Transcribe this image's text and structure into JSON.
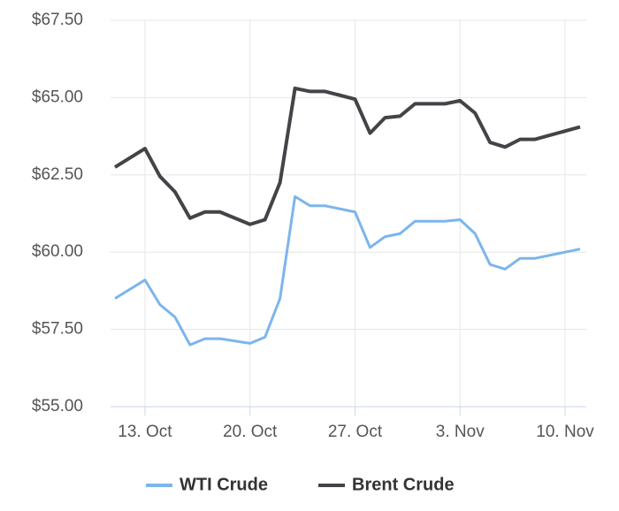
{
  "chart_data": {
    "type": "line",
    "x": [
      "10-11",
      "10-13",
      "10-14",
      "10-15",
      "10-16",
      "10-17",
      "10-18",
      "10-20",
      "10-21",
      "10-22",
      "10-23",
      "10-24",
      "10-25",
      "10-27",
      "10-28",
      "10-29",
      "10-30",
      "10-31",
      "11-02",
      "11-03",
      "11-04",
      "11-05",
      "11-06",
      "11-07",
      "11-08",
      "11-11"
    ],
    "series": [
      {
        "name": "WTI Crude",
        "color": "#7cb5ec",
        "values": [
          58.5,
          59.1,
          58.3,
          57.9,
          57.0,
          57.2,
          57.2,
          57.05,
          57.25,
          58.5,
          61.8,
          61.5,
          61.5,
          61.3,
          60.15,
          60.5,
          60.6,
          61.0,
          61.0,
          61.05,
          60.6,
          59.6,
          59.45,
          59.8,
          59.8,
          60.1
        ]
      },
      {
        "name": "Brent Crude",
        "color": "#434348",
        "values": [
          62.75,
          63.35,
          62.45,
          61.95,
          61.1,
          61.3,
          61.3,
          60.9,
          61.05,
          62.25,
          65.3,
          65.2,
          65.2,
          64.95,
          63.85,
          64.35,
          64.4,
          64.8,
          64.8,
          64.9,
          64.5,
          63.55,
          63.4,
          63.65,
          63.65,
          64.05
        ]
      }
    ],
    "xlim": [
      "10-11",
      "11-11"
    ],
    "xticks": [
      {
        "value": "10-13",
        "label": "13. Oct"
      },
      {
        "value": "10-20",
        "label": "20. Oct"
      },
      {
        "value": "10-27",
        "label": "27. Oct"
      },
      {
        "value": "11-03",
        "label": "3. Nov"
      },
      {
        "value": "11-10",
        "label": "10. Nov"
      }
    ],
    "ylim": [
      55,
      67.5
    ],
    "yticks": [
      {
        "value": 55,
        "label": "$55.00"
      },
      {
        "value": 57.5,
        "label": "$57.50"
      },
      {
        "value": 60,
        "label": "$60.00"
      },
      {
        "value": 62.5,
        "label": "$62.50"
      },
      {
        "value": 65,
        "label": "$65.00"
      },
      {
        "value": 67.5,
        "label": "$67.50"
      }
    ],
    "grid": true,
    "legend": "bottom"
  }
}
